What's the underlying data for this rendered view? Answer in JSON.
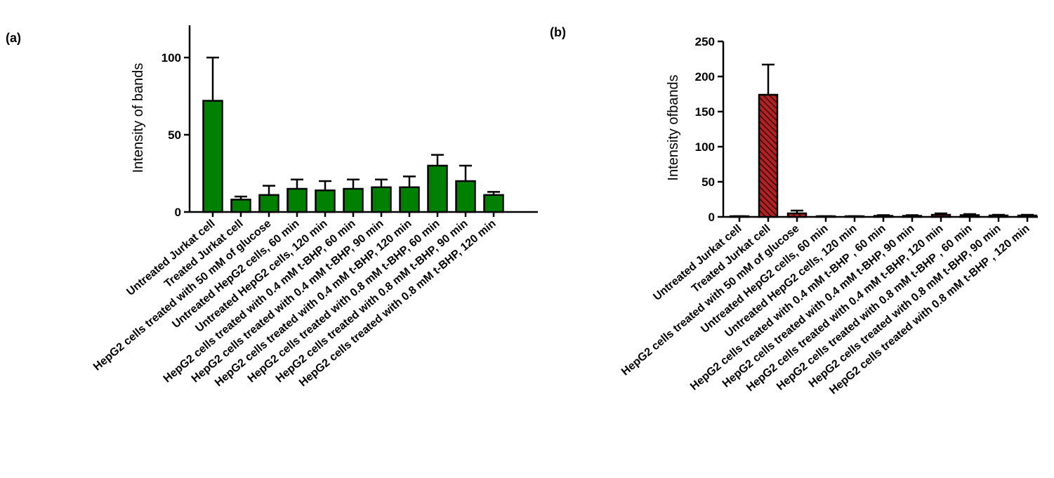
{
  "chart_data": [
    {
      "type": "bar",
      "panel_label": "(a)",
      "title": "",
      "xlabel": "",
      "ylabel": "Intensity of bands",
      "ylim": [
        0,
        120
      ],
      "yticks": [
        0,
        50,
        100
      ],
      "bar_color": "#008000",
      "bar_pattern": "solid",
      "categories": [
        "Untreated Jurkat cell",
        "Treated Jurkat cell",
        "HepG2 cells treated with 50 mM of glucose",
        "Untreated HepG2 cells, 60 min",
        "Untreated HepG2 cells, 120 min",
        "HepG2 cells treated with 0.4 mM t-BHP, 60 min",
        "HepG2 cells treated with 0.4 mM t-BHP, 90 min",
        "HepG2 cells treated with 0.4 mM t-BHP, 120 min",
        "HepG2 cells treated with 0.8 mM t-BHP, 60 min",
        "HepG2 cells treated with 0.8 mM t-BHP, 90 min",
        "HepG2 cells treated with 0.8 mM t-BHP, 120 min"
      ],
      "values": [
        72,
        8,
        11,
        15,
        14,
        15,
        16,
        16,
        30,
        20,
        11
      ],
      "errors": [
        28,
        2,
        6,
        6,
        6,
        6,
        5,
        7,
        7,
        10,
        2
      ]
    },
    {
      "type": "bar",
      "panel_label": "(b)",
      "title": "",
      "xlabel": "",
      "ylabel": "Intensity ofbands",
      "ylim": [
        0,
        250
      ],
      "yticks": [
        0,
        50,
        100,
        150,
        200,
        250
      ],
      "bar_color": "#b22222",
      "bar_pattern": "hatched",
      "categories": [
        "Untreated Jurkat cell",
        "Treated  Jurkat cell",
        "HepG2 cells treated with 50 mM of glucose",
        "Untreated HepG2 cells, 60 min",
        "Untreated HepG2 cells, 120 min",
        "HepG2 cells treated with 0.4 mM t-BHP , 60 min",
        "HepG2 cells treated with 0.4 mM t-BHP, 90 min",
        "HepG2 cells treated with 0.4 mM t-BHP, 120 min",
        "HepG2 cells treated with 0.8 mM t-BHP , 60 min",
        "HepG2 cells treated with 0.8 mM t-BHP, 90 min",
        "HepG2 cells treated with 0.8 mM t-BHP , 120 min"
      ],
      "values": [
        0.5,
        174,
        5,
        0.5,
        0.5,
        1.5,
        1.5,
        3,
        2.5,
        2,
        2
      ],
      "errors": [
        0.5,
        43,
        4,
        0.5,
        0.5,
        1,
        1,
        2,
        1.5,
        1,
        1
      ]
    }
  ]
}
